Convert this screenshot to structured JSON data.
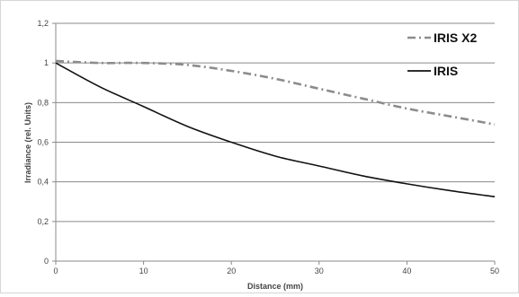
{
  "chart_data": {
    "type": "line",
    "title": "",
    "xlabel": "Distance (mm)",
    "ylabel": "Irradiance (rel. Units)",
    "xlim": [
      0,
      50
    ],
    "ylim": [
      0,
      1.2
    ],
    "x_ticks": [
      "0",
      "10",
      "20",
      "30",
      "40",
      "50"
    ],
    "y_ticks": [
      "0",
      "0,2",
      "0,4",
      "0,6",
      "0,8",
      "1",
      "1,2"
    ],
    "grid": "horizontal",
    "legend_position": "top-right",
    "series": [
      {
        "name": "IRIS X2",
        "color": "#8c8c8c",
        "line_style": "dash-dot",
        "x": [
          0,
          5,
          10,
          15,
          20,
          25,
          30,
          35,
          40,
          45,
          50
        ],
        "y": [
          1.01,
          1.0,
          1.0,
          0.99,
          0.96,
          0.92,
          0.87,
          0.82,
          0.77,
          0.73,
          0.69
        ]
      },
      {
        "name": "IRIS",
        "color": "#111111",
        "line_style": "solid",
        "x": [
          0,
          5,
          10,
          15,
          20,
          25,
          30,
          35,
          40,
          45,
          50
        ],
        "y": [
          1.0,
          0.88,
          0.78,
          0.68,
          0.6,
          0.53,
          0.48,
          0.43,
          0.39,
          0.355,
          0.325
        ]
      }
    ]
  }
}
